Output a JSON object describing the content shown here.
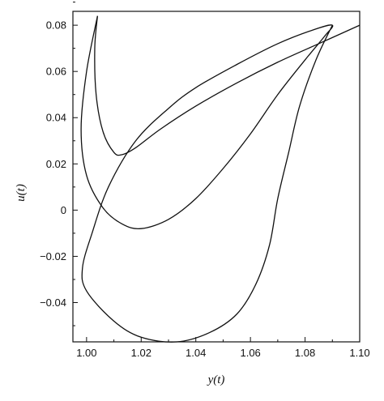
{
  "chart_data": {
    "type": "line",
    "title": "",
    "xlabel": "y(t)",
    "ylabel": "u(t)",
    "xlim": [
      0.995,
      1.1
    ],
    "ylim": [
      -0.057,
      0.086
    ],
    "x_ticks": [
      1.0,
      1.02,
      1.04,
      1.06,
      1.08,
      1.1
    ],
    "x_tick_labels": [
      "1.00",
      "1.02",
      "1.04",
      "1.06",
      "1.08",
      "1.10"
    ],
    "y_ticks": [
      -0.04,
      -0.02,
      0,
      0.02,
      0.04,
      0.06,
      0.08
    ],
    "y_tick_labels": [
      "−0.04",
      "−0.02",
      "0",
      "0.02",
      "0.04",
      "0.06",
      "0.08"
    ],
    "grid": false,
    "legend": false,
    "series": [
      {
        "points": [
          [
            1.004,
            0.084
          ],
          [
            1.003,
            0.07
          ],
          [
            1.0035,
            0.05
          ],
          [
            1.006,
            0.034
          ],
          [
            1.01,
            0.025
          ],
          [
            1.013,
            0.024
          ],
          [
            1.018,
            0.027
          ],
          [
            1.027,
            0.035
          ],
          [
            1.04,
            0.045
          ],
          [
            1.055,
            0.055
          ],
          [
            1.07,
            0.064
          ],
          [
            1.085,
            0.072
          ],
          [
            1.1,
            0.08
          ]
        ]
      },
      {
        "points": [
          [
            1.004,
            0.084
          ],
          [
            1.0,
            0.06
          ],
          [
            0.998,
            0.035
          ],
          [
            1.0,
            0.015
          ],
          [
            1.006,
            0.001
          ],
          [
            1.013,
            -0.006
          ],
          [
            1.02,
            -0.008
          ],
          [
            1.03,
            -0.004
          ],
          [
            1.04,
            0.005
          ],
          [
            1.05,
            0.018
          ],
          [
            1.06,
            0.033
          ],
          [
            1.07,
            0.05
          ],
          [
            1.08,
            0.065
          ],
          [
            1.087,
            0.075
          ],
          [
            1.09,
            0.08
          ],
          [
            1.083,
            0.078
          ],
          [
            1.07,
            0.072
          ],
          [
            1.055,
            0.063
          ],
          [
            1.04,
            0.053
          ],
          [
            1.03,
            0.044
          ],
          [
            1.018,
            0.03
          ],
          [
            1.008,
            0.01
          ],
          [
            1.002,
            -0.01
          ],
          [
            0.9985,
            -0.025
          ],
          [
            1.0,
            -0.035
          ],
          [
            1.01,
            -0.048
          ],
          [
            1.02,
            -0.055
          ],
          [
            1.033,
            -0.057
          ],
          [
            1.045,
            -0.053
          ],
          [
            1.055,
            -0.045
          ],
          [
            1.062,
            -0.032
          ],
          [
            1.067,
            -0.015
          ],
          [
            1.07,
            0.005
          ],
          [
            1.074,
            0.025
          ],
          [
            1.078,
            0.045
          ],
          [
            1.084,
            0.065
          ],
          [
            1.09,
            0.08
          ]
        ]
      }
    ]
  }
}
